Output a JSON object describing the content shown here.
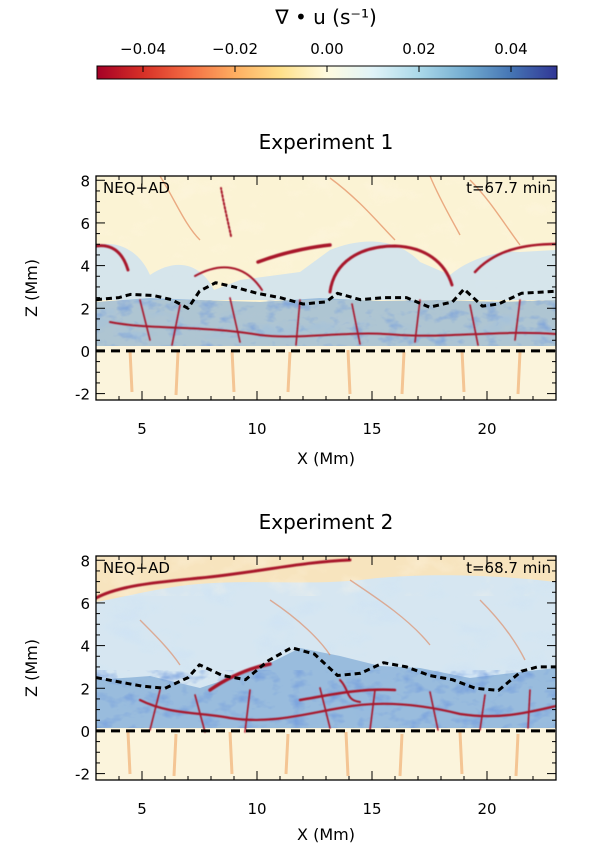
{
  "colorbar": {
    "label": "∇ • u (s⁻¹)",
    "ticks": [
      "−0.04",
      "−0.02",
      "0.00",
      "0.02",
      "0.04"
    ],
    "tick_values": [
      -0.04,
      -0.02,
      0.0,
      0.02,
      0.04
    ],
    "range": [
      -0.05,
      0.05
    ],
    "colors": [
      "#a50026",
      "#d73027",
      "#f46d43",
      "#fdae61",
      "#fee08b",
      "#fffbe0",
      "#e0f3f8",
      "#abd9e9",
      "#74add1",
      "#4575b4",
      "#313695"
    ]
  },
  "chart_data": [
    {
      "type": "heatmap",
      "title": "Experiment 1",
      "annotation_left": "NEQ+AD",
      "annotation_right": "t=67.7 min",
      "xlabel": "X (Mm)",
      "ylabel": "Z (Mm)",
      "xlim": [
        3,
        23
      ],
      "ylim": [
        -2.3,
        8.2
      ],
      "xticks": [
        5,
        10,
        15,
        20
      ],
      "yticks": [
        -2,
        0,
        2,
        4,
        6,
        8
      ],
      "transition_region_z": [
        [
          3.0,
          2.4
        ],
        [
          4.0,
          2.5
        ],
        [
          4.5,
          2.65
        ],
        [
          5.5,
          2.6
        ],
        [
          6.3,
          2.4
        ],
        [
          7.0,
          2.0
        ],
        [
          7.5,
          2.8
        ],
        [
          8.2,
          3.2
        ],
        [
          9.0,
          3.0
        ],
        [
          10.0,
          2.7
        ],
        [
          11.0,
          2.5
        ],
        [
          12.0,
          2.2
        ],
        [
          13.0,
          2.3
        ],
        [
          13.5,
          2.7
        ],
        [
          14.5,
          2.4
        ],
        [
          15.5,
          2.5
        ],
        [
          16.5,
          2.5
        ],
        [
          17.5,
          2.05
        ],
        [
          18.5,
          2.3
        ],
        [
          19.0,
          2.9
        ],
        [
          19.8,
          2.1
        ],
        [
          20.5,
          2.2
        ],
        [
          21.5,
          2.7
        ],
        [
          23.0,
          2.8
        ]
      ],
      "photosphere_z": 0.0
    },
    {
      "type": "heatmap",
      "title": "Experiment 2",
      "annotation_left": "NEQ+AD",
      "annotation_right": "t=68.7 min",
      "xlabel": "X (Mm)",
      "ylabel": "Z (Mm)",
      "xlim": [
        3,
        23
      ],
      "ylim": [
        -2.3,
        8.2
      ],
      "xticks": [
        5,
        10,
        15,
        20
      ],
      "yticks": [
        -2,
        0,
        2,
        4,
        6,
        8
      ],
      "transition_region_z": [
        [
          3.0,
          2.5
        ],
        [
          4.0,
          2.3
        ],
        [
          5.0,
          2.1
        ],
        [
          6.0,
          2.0
        ],
        [
          7.0,
          2.5
        ],
        [
          7.5,
          3.1
        ],
        [
          8.5,
          2.6
        ],
        [
          9.5,
          2.4
        ],
        [
          10.5,
          3.3
        ],
        [
          11.5,
          3.9
        ],
        [
          12.5,
          3.6
        ],
        [
          13.5,
          2.6
        ],
        [
          14.5,
          2.7
        ],
        [
          15.5,
          3.2
        ],
        [
          16.5,
          3.0
        ],
        [
          17.5,
          2.6
        ],
        [
          18.5,
          2.4
        ],
        [
          19.5,
          2.0
        ],
        [
          20.5,
          1.9
        ],
        [
          21.5,
          2.8
        ],
        [
          22.2,
          3.0
        ],
        [
          23.0,
          3.0
        ]
      ],
      "photosphere_z": 0.0
    }
  ]
}
